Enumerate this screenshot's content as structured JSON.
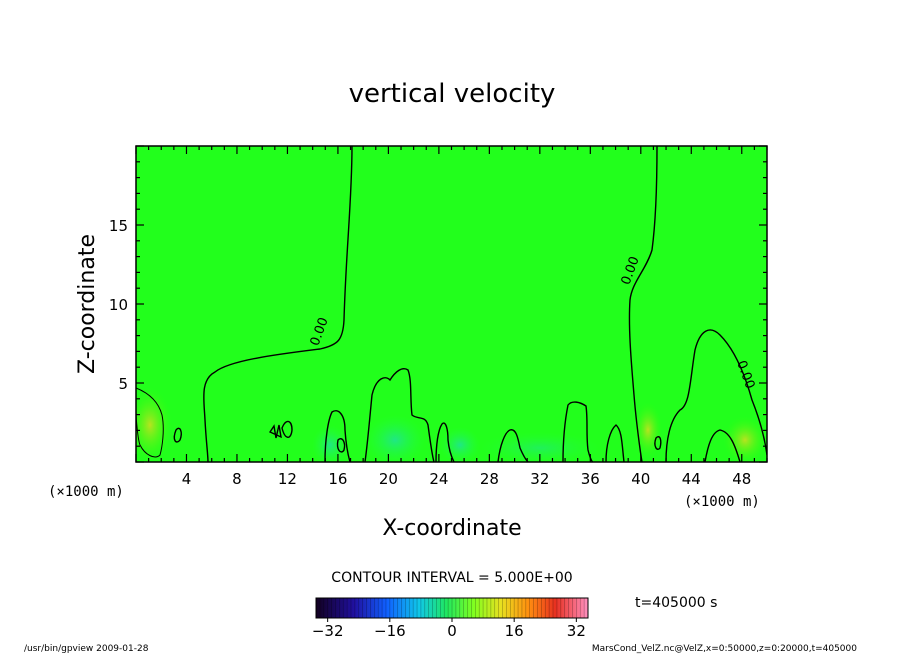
{
  "chart_data": {
    "type": "contour",
    "title": "vertical velocity",
    "xlabel": "X-coordinate",
    "ylabel": "Z-coordinate",
    "x_unit_label": "(×1000 m)",
    "y_unit_label": "(×1000 m)",
    "xlim": [
      0,
      50
    ],
    "ylim": [
      0,
      20
    ],
    "x_ticks": [
      4,
      8,
      12,
      16,
      20,
      24,
      28,
      32,
      36,
      40,
      44,
      48
    ],
    "y_ticks": [
      5,
      10,
      15
    ],
    "contour_interval_text": "CONTOUR INTERVAL = 5.000E+00",
    "contour_labels": [
      "0.00",
      "0.00",
      "0.00"
    ],
    "colorbar": {
      "min": -35,
      "max": 35,
      "ticks": [
        -32,
        -16,
        0,
        16,
        32
      ]
    },
    "time_text": "t=405000 s",
    "background_color": "#00ff00"
  },
  "footer": {
    "left": "/usr/bin/gpview   2009-01-28",
    "right": "MarsCond_VelZ.nc@VelZ,x=0:50000,z=0:20000,t=405000"
  }
}
